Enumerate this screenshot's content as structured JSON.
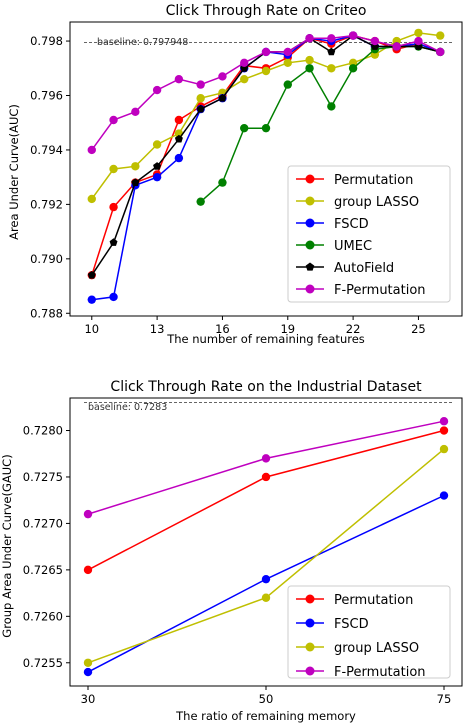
{
  "chart_data": [
    {
      "type": "line",
      "title": "Click Through Rate on Criteo",
      "xlabel": "The number of remaining features",
      "ylabel": "Area Under Curve(AUC)",
      "xlim": [
        9,
        27
      ],
      "ylim": [
        0.7879,
        0.7987
      ],
      "xticks": [
        10,
        13,
        16,
        19,
        22,
        25
      ],
      "yticks": [
        0.788,
        0.79,
        0.792,
        0.794,
        0.796,
        0.798
      ],
      "ytick_labels": [
        "0.788",
        "0.790",
        "0.792",
        "0.794",
        "0.796",
        "0.798"
      ],
      "baseline": {
        "label": "baseline: 0.797948",
        "value": 0.797948
      },
      "legend_position": "lower-right",
      "grid": false,
      "series": [
        {
          "name": "Permutation",
          "color": "#ff0000",
          "marker": "circle",
          "x": [
            10,
            11,
            12,
            13,
            14,
            15,
            16,
            17,
            18,
            19,
            20,
            21,
            22,
            23,
            24,
            25,
            26
          ],
          "y": [
            0.7894,
            0.7919,
            0.7928,
            0.7931,
            0.7951,
            0.7956,
            0.796,
            0.7971,
            0.797,
            0.7974,
            0.7981,
            0.7979,
            0.7982,
            0.798,
            0.7977,
            0.7979,
            0.7976
          ]
        },
        {
          "name": "group LASSO",
          "color": "#bfbf00",
          "marker": "circle",
          "x": [
            10,
            11,
            12,
            13,
            14,
            15,
            16,
            17,
            18,
            19,
            20,
            21,
            22,
            23,
            24,
            25,
            26
          ],
          "y": [
            0.7922,
            0.7933,
            0.7934,
            0.7942,
            0.7946,
            0.7959,
            0.7961,
            0.7966,
            0.7969,
            0.7972,
            0.7973,
            0.797,
            0.7972,
            0.7975,
            0.798,
            0.7983,
            0.7982
          ]
        },
        {
          "name": "FSCD",
          "color": "#0000ff",
          "marker": "circle",
          "x": [
            10,
            11,
            12,
            13,
            14,
            15,
            16,
            17,
            18,
            19,
            20,
            21,
            22,
            23,
            24,
            25,
            26
          ],
          "y": [
            0.7885,
            0.7886,
            0.7927,
            0.793,
            0.7937,
            0.7955,
            0.7959,
            0.797,
            0.7976,
            0.7975,
            0.7981,
            0.798,
            0.7982,
            0.7978,
            0.7978,
            0.7979,
            0.7976
          ]
        },
        {
          "name": "UMEC",
          "color": "#008000",
          "marker": "circle",
          "x": [
            15,
            16,
            17,
            18,
            19,
            20,
            21,
            22,
            23,
            24,
            25,
            26
          ],
          "y": [
            0.7921,
            0.7928,
            0.7948,
            0.7948,
            0.7964,
            0.797,
            0.7956,
            0.797,
            0.7977,
            0.7978,
            0.7978,
            0.7976
          ]
        },
        {
          "name": "AutoField",
          "color": "#000000",
          "marker": "pentagon",
          "x": [
            10,
            11,
            12,
            13,
            14,
            15,
            16,
            17,
            18,
            19,
            20,
            21,
            22,
            23,
            24,
            25,
            26
          ],
          "y": [
            0.7894,
            0.7906,
            0.7928,
            0.7934,
            0.7944,
            0.7955,
            0.7959,
            0.797,
            0.7976,
            0.7976,
            0.7981,
            0.7976,
            0.7982,
            0.7978,
            0.7978,
            0.7978,
            0.7976
          ]
        },
        {
          "name": "F-Permutation",
          "color": "#bf00bf",
          "marker": "circle",
          "x": [
            10,
            11,
            12,
            13,
            14,
            15,
            16,
            17,
            18,
            19,
            20,
            21,
            22,
            23,
            24,
            25,
            26
          ],
          "y": [
            0.794,
            0.7951,
            0.7954,
            0.7962,
            0.7966,
            0.7964,
            0.7967,
            0.7972,
            0.7976,
            0.7976,
            0.7981,
            0.7981,
            0.7982,
            0.798,
            0.7978,
            0.798,
            0.7976
          ]
        }
      ]
    },
    {
      "type": "line",
      "title": "Click Through Rate on the Industrial Dataset",
      "xlabel": "The ratio of remaining memory",
      "ylabel": "Group Area Under Curve(GAUC)",
      "categories": [
        "30",
        "50",
        "75"
      ],
      "ylim": [
        0.72525,
        0.72835
      ],
      "yticks": [
        0.7255,
        0.726,
        0.7265,
        0.727,
        0.7275,
        0.728
      ],
      "ytick_labels": [
        "0.7255",
        "0.7260",
        "0.7265",
        "0.7270",
        "0.7275",
        "0.7280"
      ],
      "baseline": {
        "label": "baseline: 0.7283",
        "value": 0.7283
      },
      "legend_position": "lower-right",
      "grid": false,
      "series": [
        {
          "name": "Permutation",
          "color": "#ff0000",
          "marker": "circle",
          "values": [
            0.7265,
            0.7275,
            0.728
          ]
        },
        {
          "name": "FSCD",
          "color": "#0000ff",
          "marker": "circle",
          "values": [
            0.7254,
            0.7264,
            0.7273
          ]
        },
        {
          "name": "group LASSO",
          "color": "#bfbf00",
          "marker": "circle",
          "values": [
            0.7255,
            0.7262,
            0.7278
          ]
        },
        {
          "name": "F-Permutation",
          "color": "#bf00bf",
          "marker": "circle",
          "values": [
            0.7271,
            0.7277,
            0.7281
          ]
        }
      ]
    }
  ]
}
